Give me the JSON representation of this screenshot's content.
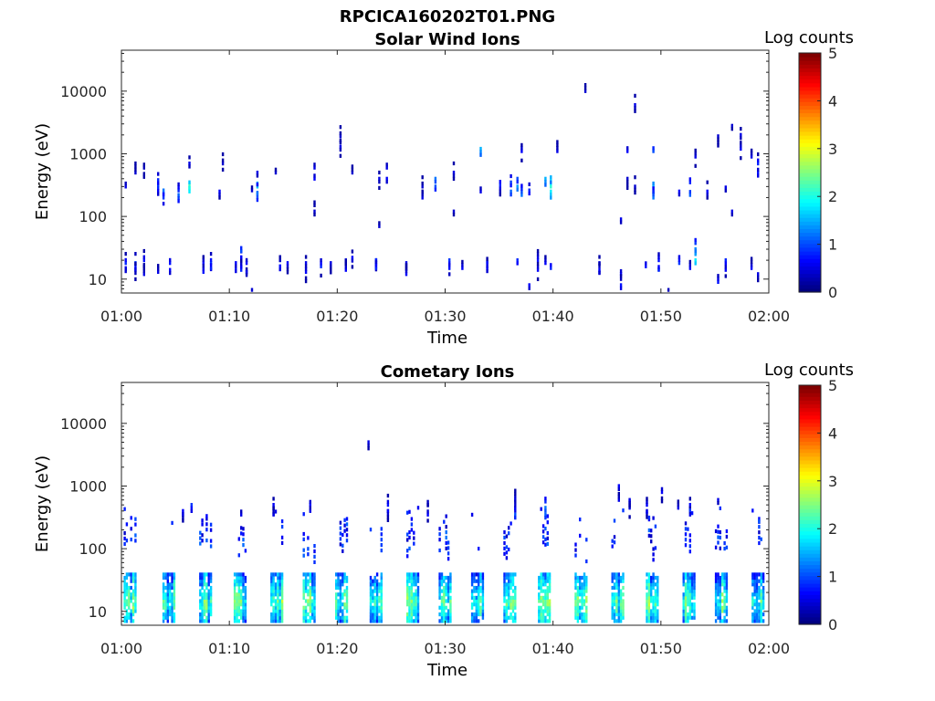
{
  "figure": {
    "filename": "RPCICA160202T01.PNG"
  },
  "chart_data": [
    {
      "type": "heatmap",
      "title": "Solar Wind Ions",
      "xlabel": "Time",
      "ylabel": "Energy (eV)",
      "x_ticks": [
        "01:00",
        "01:10",
        "01:20",
        "01:30",
        "01:40",
        "01:50",
        "02:00"
      ],
      "x_range_minutes": [
        0,
        60
      ],
      "y_ticks": [
        "10",
        "100",
        "1000",
        "10000"
      ],
      "y_scale": "log",
      "y_range": [
        6,
        45000
      ],
      "colorbar": {
        "label": "Log counts",
        "ticks": [
          "0",
          "1",
          "2",
          "3",
          "4",
          "5"
        ],
        "range": [
          0,
          5
        ],
        "colormap": "jet"
      },
      "background": "#ffffff",
      "columns": [
        [
          0.3,
          [
            [
              300,
              0.5
            ],
            [
              15,
              0.6
            ],
            [
              18,
              0.8
            ]
          ]
        ],
        [
          1.2,
          [
            [
              500,
              0.4
            ],
            [
              18,
              0.9
            ],
            [
              14,
              0.5
            ]
          ]
        ],
        [
          2.0,
          [
            [
              20,
              0.7
            ],
            [
              12,
              0.5
            ],
            [
              600,
              0.3
            ]
          ]
        ],
        [
          3.3,
          [
            [
              320,
              1.0
            ],
            [
              380,
              0.8
            ],
            [
              13,
              0.5
            ]
          ]
        ],
        [
          3.8,
          [
            [
              260,
              1.2
            ],
            [
              200,
              0.9
            ]
          ]
        ],
        [
          4.4,
          [
            [
              18,
              0.7
            ],
            [
              14,
              0.6
            ]
          ]
        ],
        [
          5.2,
          [
            [
              260,
              0.8
            ],
            [
              220,
              1.1
            ]
          ]
        ],
        [
          6.2,
          [
            [
              320,
              2.2
            ],
            [
              280,
              2.0
            ],
            [
              700,
              0.5
            ]
          ]
        ],
        [
          7.5,
          [
            [
              18,
              0.6
            ],
            [
              13,
              0.7
            ]
          ]
        ],
        [
          8.2,
          [
            [
              18,
              0.9
            ],
            [
              15,
              0.8
            ]
          ]
        ],
        [
          9.0,
          [
            [
              250,
              0.6
            ]
          ]
        ],
        [
          9.3,
          [
            [
              700,
              0.4
            ]
          ]
        ],
        [
          10.5,
          [
            [
              15,
              0.7
            ],
            [
              18,
              0.6
            ]
          ]
        ],
        [
          11.0,
          [
            [
              22,
              0.9
            ],
            [
              28,
              1.0
            ],
            [
              14,
              0.8
            ]
          ]
        ],
        [
          11.5,
          [
            [
              18,
              0.6
            ],
            [
              13,
              0.5
            ]
          ]
        ],
        [
          12.0,
          [
            [
              6,
              0.6
            ],
            [
              260,
              0.4
            ]
          ]
        ],
        [
          12.5,
          [
            [
              300,
              1.6
            ],
            [
              230,
              1.2
            ],
            [
              500,
              0.5
            ]
          ]
        ],
        [
          14.2,
          [
            [
              500,
              0.4
            ]
          ]
        ],
        [
          14.6,
          [
            [
              20,
              0.9
            ],
            [
              16,
              0.7
            ]
          ]
        ],
        [
          15.3,
          [
            [
              18,
              0.6
            ]
          ]
        ],
        [
          17.0,
          [
            [
              18,
              0.5
            ],
            [
              13,
              0.6
            ]
          ]
        ],
        [
          17.8,
          [
            [
              600,
              0.5
            ],
            [
              400,
              0.6
            ],
            [
              120,
              0.4
            ]
          ]
        ],
        [
          18.4,
          [
            [
              16,
              0.8
            ]
          ]
        ],
        [
          19.3,
          [
            [
              15,
              0.6
            ],
            [
              18,
              0.5
            ]
          ]
        ],
        [
          20.2,
          [
            [
              1900,
              0.4
            ],
            [
              1300,
              0.5
            ]
          ]
        ],
        [
          20.7,
          [
            [
              20,
              0.7
            ],
            [
              14,
              0.6
            ]
          ]
        ],
        [
          21.3,
          [
            [
              22,
              0.6
            ],
            [
              500,
              0.4
            ]
          ]
        ],
        [
          23.5,
          [
            [
              20,
              0.9
            ],
            [
              18,
              1.0
            ],
            [
              15,
              0.8
            ]
          ]
        ],
        [
          23.8,
          [
            [
              400,
              0.5
            ],
            [
              70,
              0.4
            ]
          ]
        ],
        [
          24.5,
          [
            [
              600,
              0.5
            ],
            [
              400,
              0.6
            ]
          ]
        ],
        [
          26.3,
          [
            [
              18,
              0.5
            ],
            [
              12,
              0.6
            ]
          ]
        ],
        [
          27.8,
          [
            [
              300,
              0.4
            ],
            [
              200,
              0.5
            ]
          ]
        ],
        [
          29.0,
          [
            [
              400,
              1.2
            ],
            [
              300,
              1.0
            ]
          ]
        ],
        [
          30.3,
          [
            [
              20,
              0.9
            ],
            [
              15,
              0.7
            ]
          ]
        ],
        [
          30.7,
          [
            [
              120,
              0.4
            ],
            [
              500,
              0.5
            ]
          ]
        ],
        [
          31.5,
          [
            [
              15,
              0.6
            ]
          ]
        ],
        [
          33.2,
          [
            [
              1200,
              1.5
            ],
            [
              250,
              0.5
            ]
          ]
        ],
        [
          33.8,
          [
            [
              15,
              0.6
            ],
            [
              18,
              0.7
            ]
          ]
        ],
        [
          35.0,
          [
            [
              280,
              0.5
            ],
            [
              320,
              0.8
            ]
          ]
        ],
        [
          36.0,
          [
            [
              350,
              0.9
            ],
            [
              250,
              1.1
            ]
          ]
        ],
        [
          36.6,
          [
            [
              20,
              0.8
            ],
            [
              300,
              1.4
            ],
            [
              400,
              1.0
            ]
          ]
        ],
        [
          37.0,
          [
            [
              1100,
              0.6
            ],
            [
              220,
              1.2
            ]
          ]
        ],
        [
          37.7,
          [
            [
              8,
              0.6
            ],
            [
              260,
              0.8
            ]
          ]
        ],
        [
          38.5,
          [
            [
              20,
              0.7
            ],
            [
              14,
              0.6
            ]
          ]
        ],
        [
          39.2,
          [
            [
              18,
              0.6
            ],
            [
              400,
              1.5
            ]
          ]
        ],
        [
          39.7,
          [
            [
              300,
              2.1
            ],
            [
              250,
              1.8
            ],
            [
              15,
              0.8
            ]
          ]
        ],
        [
          40.3,
          [
            [
              1100,
              0.5
            ]
          ]
        ],
        [
          42.9,
          [
            [
              10000,
              0.4
            ]
          ]
        ],
        [
          44.2,
          [
            [
              18,
              0.5
            ],
            [
              14,
              0.6
            ]
          ]
        ],
        [
          46.2,
          [
            [
              12,
              0.6
            ],
            [
              8,
              0.7
            ],
            [
              90,
              0.5
            ]
          ]
        ],
        [
          46.8,
          [
            [
              400,
              0.4
            ],
            [
              1100,
              0.6
            ]
          ]
        ],
        [
          47.5,
          [
            [
              6000,
              0.5
            ],
            [
              300,
              0.4
            ]
          ]
        ],
        [
          48.5,
          [
            [
              16,
              0.7
            ]
          ]
        ],
        [
          49.2,
          [
            [
              300,
              1.5
            ],
            [
              1100,
              1.0
            ],
            [
              200,
              1.2
            ]
          ]
        ],
        [
          49.7,
          [
            [
              20,
              0.7
            ],
            [
              14,
              0.8
            ]
          ]
        ],
        [
          50.6,
          [
            [
              6,
              0.5
            ]
          ]
        ],
        [
          51.6,
          [
            [
              250,
              0.6
            ],
            [
              18,
              0.9
            ]
          ]
        ],
        [
          52.6,
          [
            [
              350,
              0.8
            ],
            [
              220,
              1.1
            ],
            [
              15,
              0.6
            ]
          ]
        ],
        [
          53.1,
          [
            [
              30,
              1.3
            ],
            [
              20,
              1.8
            ],
            [
              900,
              0.5
            ]
          ]
        ],
        [
          54.2,
          [
            [
              250,
              0.6
            ]
          ]
        ],
        [
          55.2,
          [
            [
              1900,
              0.4
            ],
            [
              9,
              0.7
            ]
          ]
        ],
        [
          55.9,
          [
            [
              20,
              0.8
            ],
            [
              14,
              0.6
            ],
            [
              290,
              0.5
            ]
          ]
        ],
        [
          56.5,
          [
            [
              120,
              0.5
            ],
            [
              2800,
              0.4
            ]
          ]
        ],
        [
          57.3,
          [
            [
              2000,
              0.5
            ],
            [
              1200,
              0.6
            ]
          ]
        ],
        [
          58.3,
          [
            [
              900,
              0.5
            ],
            [
              15,
              0.6
            ]
          ]
        ],
        [
          58.9,
          [
            [
              500,
              0.7
            ],
            [
              700,
              0.8
            ],
            [
              12,
              0.5
            ]
          ]
        ]
      ]
    },
    {
      "type": "heatmap",
      "title": "Cometary Ions",
      "xlabel": "Time",
      "ylabel": "Energy (eV)",
      "x_ticks": [
        "01:00",
        "01:10",
        "01:20",
        "01:30",
        "01:40",
        "01:50",
        "02:00"
      ],
      "x_range_minutes": [
        0,
        60
      ],
      "y_ticks": [
        "10",
        "100",
        "1000",
        "10000"
      ],
      "y_scale": "log",
      "y_range": [
        6,
        45000
      ],
      "colorbar": {
        "label": "Log counts",
        "ticks": [
          "0",
          "1",
          "2",
          "3",
          "4",
          "5"
        ],
        "range": [
          0,
          5
        ],
        "colormap": "jet"
      },
      "background": "#ffffff",
      "periodic_bursts_minutes": [
        0.8,
        4.4,
        7.8,
        11.0,
        14.4,
        17.4,
        20.4,
        23.6,
        27.0,
        30.0,
        33.0,
        36.0,
        39.2,
        42.6,
        46.0,
        49.2,
        52.6,
        55.6,
        59.0
      ],
      "columns": [
        [
          5.6,
          [
            [
              400,
              0.6
            ],
            [
              350,
              0.5
            ]
          ]
        ],
        [
          6.4,
          [
            [
              500,
              0.9
            ]
          ]
        ],
        [
          11.0,
          [
            [
              350,
              0.5
            ]
          ]
        ],
        [
          14.0,
          [
            [
              500,
              0.6
            ],
            [
              350,
              0.5
            ]
          ]
        ],
        [
          17.4,
          [
            [
              500,
              0.6
            ],
            [
              400,
              0.5
            ]
          ]
        ],
        [
          22.8,
          [
            [
              5000,
              0.5
            ]
          ]
        ],
        [
          24.6,
          [
            [
              500,
              0.7
            ],
            [
              400,
              0.6
            ]
          ]
        ],
        [
          28.3,
          [
            [
              500,
              0.5
            ],
            [
              350,
              0.6
            ]
          ]
        ],
        [
          36.4,
          [
            [
              600,
              0.6
            ],
            [
              450,
              0.7
            ],
            [
              350,
              1.0
            ]
          ]
        ],
        [
          39.2,
          [
            [
              450,
              1.2
            ],
            [
              350,
              1.1
            ]
          ]
        ],
        [
          46.0,
          [
            [
              1000,
              0.6
            ],
            [
              600,
              0.5
            ]
          ]
        ],
        [
          47.0,
          [
            [
              450,
              0.5
            ],
            [
              600,
              0.5
            ]
          ]
        ],
        [
          48.6,
          [
            [
              500,
              0.6
            ],
            [
              400,
              0.5
            ]
          ]
        ],
        [
          50.0,
          [
            [
              800,
              0.6
            ]
          ]
        ],
        [
          51.5,
          [
            [
              450,
              0.5
            ]
          ]
        ],
        [
          52.6,
          [
            [
              500,
              0.6
            ],
            [
              350,
              0.5
            ]
          ]
        ],
        [
          55.2,
          [
            [
              600,
              0.5
            ]
          ]
        ],
        [
          59.0,
          [
            [
              300,
              0.7
            ]
          ]
        ]
      ]
    }
  ]
}
